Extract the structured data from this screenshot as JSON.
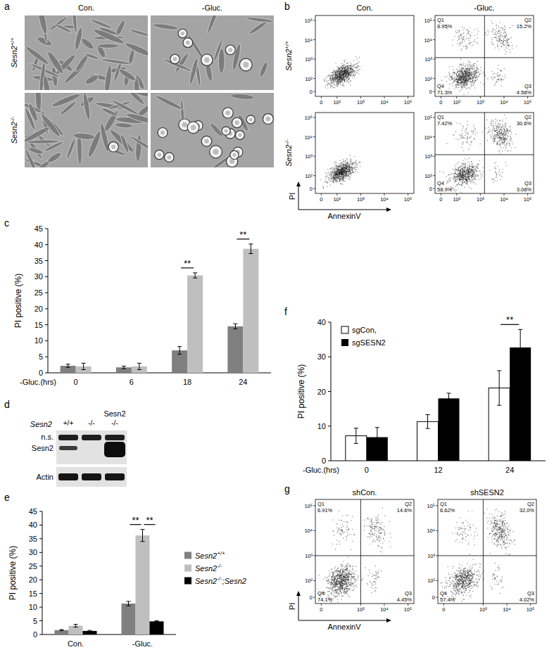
{
  "panel_labels": [
    "a",
    "b",
    "c",
    "d",
    "e",
    "f",
    "g"
  ],
  "micrographs": {
    "columns": [
      "Con.",
      "-Gluc."
    ],
    "rows": [
      "Sesn2+/+",
      "Sesn2-/-"
    ]
  },
  "flow_b": {
    "columns": [
      "Con.",
      "-Gluc."
    ],
    "rows": [
      "Sesn2+/+",
      "Sesn2-/-"
    ],
    "x_label": "AnnexinV",
    "y_label": "PI",
    "xticks": [
      0,
      {
        "value": 100,
        "label": "10²"
      },
      {
        "value": 1000,
        "label": "10³"
      },
      {
        "value": 10000,
        "label": "10⁴"
      },
      {
        "value": 100000,
        "label": "10⁵"
      }
    ],
    "yticks": [
      0,
      {
        "value": 100,
        "label": "10²"
      },
      {
        "value": 1000,
        "label": "10³"
      },
      {
        "value": 10000,
        "label": "10⁴"
      },
      {
        "value": 100000,
        "label": "10⁵"
      }
    ],
    "plots": [
      [
        {
          "gated": false
        },
        {
          "gated": true,
          "gate": {
            "x": 1500,
            "y": 1200
          },
          "quadrants": [
            {
              "name": "Q1",
              "label": "8.95%"
            },
            {
              "name": "Q2",
              "label": "15.2%"
            },
            {
              "name": "Q3",
              "label": "4.58%"
            },
            {
              "name": "Q4",
              "label": "71.3%"
            }
          ]
        }
      ],
      [
        {
          "gated": false
        },
        {
          "gated": true,
          "gate": {
            "x": 1500,
            "y": 1200
          },
          "quadrants": [
            {
              "name": "Q1",
              "label": "7.42%"
            },
            {
              "name": "Q2",
              "label": "30.6%"
            },
            {
              "name": "Q3",
              "label": "3.08%"
            },
            {
              "name": "Q4",
              "label": "58.9%"
            }
          ]
        }
      ]
    ]
  },
  "blot": {
    "treatment": "Sesn2",
    "genotype": "Sesn2",
    "lanes": [
      "+/+",
      "-/-",
      "-/-"
    ],
    "bands": [
      "n.s.",
      "Sesn2",
      "Actin"
    ]
  },
  "flow_g": {
    "columns": [
      "shCon.",
      "shSESN2"
    ],
    "x_label": "AnnexinV",
    "y_label": "PI",
    "xticks": [
      0,
      {
        "value": 1000,
        "label": "10³"
      },
      {
        "value": 10000,
        "label": "10⁴"
      },
      {
        "value": 100000,
        "label": "10⁵"
      }
    ],
    "yticks": [
      0,
      {
        "value": 100,
        "label": "10²"
      },
      {
        "value": 1000,
        "label": "10³"
      },
      {
        "value": 10000,
        "label": "10⁴"
      },
      {
        "value": 100000,
        "label": "10⁵"
      }
    ],
    "plots": [
      {
        "gated": true,
        "gate": {
          "x": 1000,
          "y": 1000
        },
        "quadrants": [
          {
            "name": "Q1",
            "label": "6.91%"
          },
          {
            "name": "Q2",
            "label": "14.6%"
          },
          {
            "name": "Q3",
            "label": "4.45%"
          },
          {
            "name": "Q4",
            "label": "74.1%"
          }
        ]
      },
      {
        "gated": true,
        "gate": {
          "x": 1000,
          "y": 1000
        },
        "quadrants": [
          {
            "name": "Q1",
            "label": "6.62%"
          },
          {
            "name": "Q2",
            "label": "32.0%"
          },
          {
            "name": "Q3",
            "label": "4.02%"
          },
          {
            "name": "Q4",
            "label": "57.4%"
          }
        ]
      }
    ]
  },
  "chart_data": [
    {
      "type": "bar",
      "x_label": "-Gluc.(hrs)",
      "y_label": "PI positive (%)",
      "categories": [
        "0",
        "6",
        "18",
        "24"
      ],
      "series": [
        {
          "color": "#808080",
          "values": [
            2.2,
            1.7,
            7.0,
            14.5
          ],
          "errors": [
            0.5,
            0.4,
            1.2,
            0.8
          ]
        },
        {
          "color": "#bfbfbf",
          "values": [
            2.0,
            2.0,
            30.4,
            38.7
          ],
          "errors": [
            1.0,
            1.0,
            0.8,
            1.5
          ]
        }
      ],
      "ylim": [
        0,
        45
      ],
      "yticks": [
        0,
        5,
        10,
        15,
        20,
        25,
        30,
        35,
        40,
        45
      ],
      "grid": false,
      "annotations": [
        {
          "text": "**",
          "category": 2,
          "series": [
            0,
            1
          ]
        },
        {
          "text": "**",
          "category": 3,
          "series": [
            0,
            1
          ]
        }
      ]
    },
    {
      "type": "bar",
      "y_label": "PI positive (%)",
      "categories": [
        "Con.",
        "-Gluc."
      ],
      "series": [
        {
          "name": "Sesn2+/+",
          "color": "#808080",
          "values": [
            1.6,
            11.3
          ],
          "errors": [
            0.2,
            0.8
          ]
        },
        {
          "name": "Sesn2-/-",
          "color": "#bfbfbf",
          "values": [
            3.2,
            36.2
          ],
          "errors": [
            0.5,
            2.2
          ]
        },
        {
          "name": "Sesn2-/-;Sesn2",
          "color": "#000000",
          "values": [
            1.3,
            4.8
          ],
          "errors": [
            0.2,
            0.2
          ]
        }
      ],
      "ylim": [
        0,
        45
      ],
      "yticks": [
        0,
        5,
        10,
        15,
        20,
        25,
        30,
        35,
        40,
        45
      ],
      "grid": false,
      "legend": "right",
      "annotations": [
        {
          "text": "**",
          "category": 1,
          "series": [
            0,
            1
          ]
        },
        {
          "text": "**",
          "category": 1,
          "series": [
            1,
            2
          ]
        }
      ]
    },
    {
      "type": "bar",
      "x_label": "-Gluc.(hrs)",
      "y_label": "PI positive (%)",
      "categories": [
        "0",
        "12",
        "24"
      ],
      "series": [
        {
          "name": "sgCon,",
          "color": "#ffffff",
          "values": [
            7.2,
            11.3,
            21.0
          ],
          "errors": [
            2.2,
            2.0,
            5.0
          ]
        },
        {
          "name": "sgSESN2",
          "color": "#000000",
          "values": [
            6.8,
            18.0,
            32.7
          ],
          "errors": [
            2.8,
            1.5,
            5.2
          ]
        }
      ],
      "ylim": [
        0,
        40
      ],
      "yticks": [
        0,
        10,
        20,
        30,
        40
      ],
      "grid": false,
      "legend": "top-left",
      "annotations": [
        {
          "text": "**",
          "category": 2,
          "series": [
            0,
            1
          ]
        }
      ]
    }
  ]
}
